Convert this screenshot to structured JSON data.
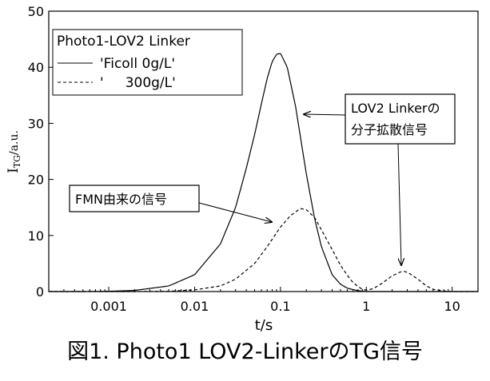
{
  "chart_data": {
    "type": "line",
    "xscale": "log",
    "xlim": [
      0.0002,
      20
    ],
    "ylim": [
      0,
      50
    ],
    "xticks": [
      0.001,
      0.01,
      0.1,
      1,
      10
    ],
    "xtick_labels": [
      "0.001",
      "0.01",
      "0.1",
      "1",
      "10"
    ],
    "yticks": [
      0,
      10,
      20,
      30,
      40,
      50
    ],
    "ytick_labels": [
      "0",
      "10",
      "20",
      "30",
      "40",
      "50"
    ],
    "xlabel": "t/s",
    "ylabel_main": "I",
    "ylabel_sub": "TG",
    "ylabel_rest": "/a.u.",
    "legend": {
      "title": "Photo1-LOV2 Linker",
      "entries": [
        {
          "label": "'Ficoll 0g/L'",
          "style": "solid"
        },
        {
          "label": "'     300g/L'",
          "style": "dashed"
        }
      ]
    },
    "series": [
      {
        "name": "'Ficoll 0g/L'",
        "style": "solid",
        "x": [
          0.0002,
          0.0005,
          0.001,
          0.002,
          0.005,
          0.01,
          0.02,
          0.03,
          0.04,
          0.05,
          0.06,
          0.07,
          0.08,
          0.09,
          0.1,
          0.12,
          0.15,
          0.2,
          0.25,
          0.3,
          0.4,
          0.5,
          0.6,
          0.8,
          1,
          20
        ],
        "y": [
          0,
          0,
          0.05,
          0.2,
          1,
          3,
          8.5,
          15,
          22,
          28,
          33.5,
          38,
          41,
          42.3,
          42.5,
          40,
          33,
          21,
          13,
          8,
          3,
          1.3,
          0.6,
          0.15,
          0,
          0
        ]
      },
      {
        "name": "'     300g/L'",
        "style": "dashed",
        "x": [
          0.0002,
          0.002,
          0.005,
          0.01,
          0.02,
          0.03,
          0.05,
          0.07,
          0.1,
          0.13,
          0.17,
          0.2,
          0.25,
          0.3,
          0.4,
          0.5,
          0.6,
          0.7,
          0.8,
          0.9,
          1,
          1.2,
          1.5,
          2,
          2.5,
          2.8,
          3.2,
          4,
          5,
          6,
          8,
          10,
          20
        ],
        "y": [
          0,
          0,
          0.05,
          0.3,
          1,
          2.2,
          5,
          8,
          11.5,
          13.5,
          14.8,
          14.6,
          13.2,
          11,
          7.5,
          4.7,
          2.9,
          1.6,
          0.9,
          0.4,
          0.25,
          0.5,
          1.4,
          2.8,
          3.5,
          3.6,
          3.2,
          2.2,
          1,
          0.4,
          0.1,
          0,
          0
        ]
      }
    ],
    "annotations": [
      {
        "lines": [
          "LOV2 Linkerの",
          "分子拡散信号"
        ],
        "arrows": [
          {
            "to_x": 0.28,
            "to_y": 31.8
          },
          {
            "to_x": 2.6,
            "to_y": 4.2
          }
        ]
      },
      {
        "lines": [
          "FMN由来の信号"
        ],
        "arrows": [
          {
            "to_x": 0.13,
            "to_y": 12.5
          }
        ]
      }
    ]
  },
  "caption": "図1. Photo1 LOV2-LinkerのTG信号"
}
